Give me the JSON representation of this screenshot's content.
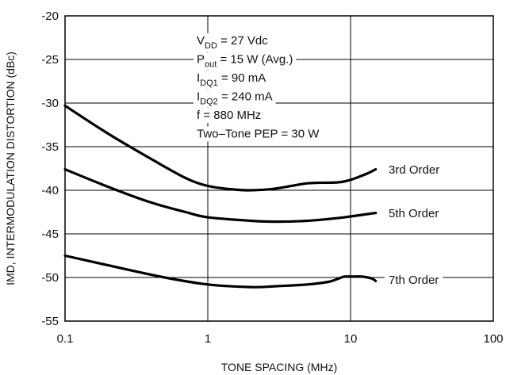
{
  "chart_data": {
    "type": "line",
    "xlabel": "TONE SPACING (MHz)",
    "ylabel": "IMD, INTERMODULATION DISTORTION (dBc)",
    "xscale": "log",
    "xlim": [
      0.1,
      100
    ],
    "ylim": [
      -55,
      -20
    ],
    "grid": true,
    "x_tick_labels": [
      "0.1",
      "1",
      "10",
      "100"
    ],
    "y_tick_labels": [
      "-20",
      "-25",
      "-30",
      "-35",
      "-40",
      "-45",
      "-50",
      "-55"
    ],
    "annotation_lines": [
      {
        "main": "V",
        "sub": "DD",
        "rest": " = 27 Vdc"
      },
      {
        "main": "P",
        "sub": "out",
        "rest": " = 15 W (Avg.)"
      },
      {
        "main": "I",
        "sub": "DQ1",
        "rest": " = 90 mA"
      },
      {
        "main": "I",
        "sub": "DQ2",
        "rest": " = 240 mA"
      },
      {
        "main": "f = 880 MHz",
        "sub": "",
        "rest": ""
      },
      {
        "main": "Two–Tone PEP = 30 W",
        "sub": "",
        "rest": ""
      }
    ],
    "series": [
      {
        "name": "3rd Order",
        "x": [
          0.1,
          0.2,
          0.4,
          0.7,
          1.0,
          1.5,
          2.0,
          3.0,
          5.0,
          8.0,
          10.0,
          13.0,
          15.0
        ],
        "y": [
          -30.3,
          -33.5,
          -36.4,
          -38.6,
          -39.5,
          -39.9,
          -40.0,
          -39.8,
          -39.2,
          -39.1,
          -38.8,
          -38.1,
          -37.6
        ]
      },
      {
        "name": "5th Order",
        "x": [
          0.1,
          0.2,
          0.4,
          0.7,
          1.0,
          2.0,
          3.0,
          5.0,
          8.0,
          10.0,
          15.0
        ],
        "y": [
          -37.6,
          -39.6,
          -41.4,
          -42.5,
          -43.1,
          -43.5,
          -43.6,
          -43.5,
          -43.2,
          -43.0,
          -42.6
        ]
      },
      {
        "name": "7th Order",
        "x": [
          0.1,
          0.2,
          0.5,
          1.0,
          2.0,
          3.0,
          5.0,
          7.0,
          8.0,
          9.0,
          10.0,
          12.0,
          14.0,
          15.0
        ],
        "y": [
          -47.5,
          -48.6,
          -50.0,
          -50.8,
          -51.1,
          -51.0,
          -50.8,
          -50.5,
          -50.2,
          -49.9,
          -49.9,
          -49.9,
          -50.1,
          -50.4
        ]
      }
    ],
    "colors": {
      "line": "#000000",
      "grid": "#000000",
      "background": "#ffffff"
    }
  }
}
